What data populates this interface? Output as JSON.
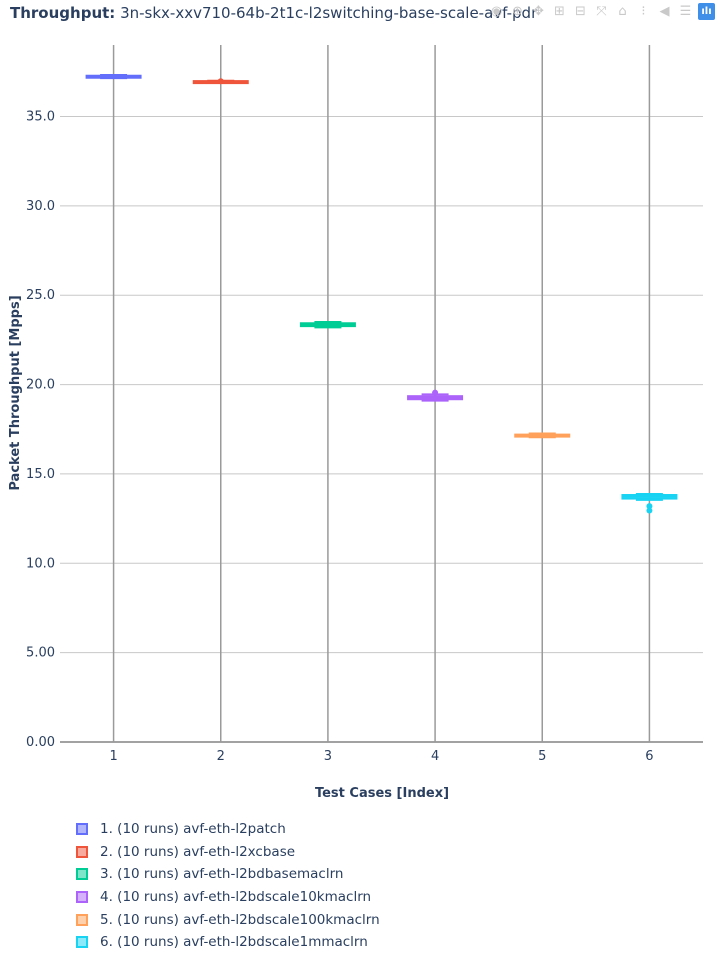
{
  "title": {
    "prefix": "Throughput:",
    "text": "3n-skx-xxv710-64b-2t1c-l2switching-base-scale-avf-pdr"
  },
  "modebar": [
    {
      "name": "camera-icon",
      "glyph": "◉"
    },
    {
      "name": "zoom-icon",
      "glyph": "⊕"
    },
    {
      "name": "pan-icon",
      "glyph": "✥"
    },
    {
      "name": "zoom-in-icon",
      "glyph": "⊞"
    },
    {
      "name": "zoom-out-icon",
      "glyph": "⊟"
    },
    {
      "name": "autoscale-icon",
      "glyph": "⤧"
    },
    {
      "name": "reset-axes-icon",
      "glyph": "⌂"
    },
    {
      "name": "spike-lines-icon",
      "glyph": "⁝"
    },
    {
      "name": "hover-closest-icon",
      "glyph": "◀"
    },
    {
      "name": "hover-compare-icon",
      "glyph": "☰"
    },
    {
      "name": "plotly-logo-icon",
      "glyph": "ılı"
    }
  ],
  "chart_data": {
    "type": "box",
    "xlabel": "Test Cases [Index]",
    "ylabel": "Packet Throughput [Mpps]",
    "ylim": [
      0,
      39
    ],
    "xlim": [
      0.5,
      6.5
    ],
    "yticks": [
      "0.00",
      "5.00",
      "10.0",
      "15.0",
      "20.0",
      "25.0",
      "30.0",
      "35.0"
    ],
    "yticks_values": [
      0,
      5,
      10,
      15,
      20,
      25,
      30,
      35
    ],
    "xticks": [
      "1",
      "2",
      "3",
      "4",
      "5",
      "6"
    ],
    "grid": true,
    "legend_position": "bottom-left",
    "series": [
      {
        "name": "1. (10 runs) avf-eth-l2patch",
        "x": 1,
        "color": "#636efa",
        "min": 37.15,
        "q1": 37.18,
        "median": 37.23,
        "q3": 37.28,
        "max": 37.32,
        "outliers": []
      },
      {
        "name": "2. (10 runs) avf-eth-l2xcbase",
        "x": 2,
        "color": "#ef553b",
        "min": 36.92,
        "q1": 36.94,
        "median": 36.96,
        "q3": 36.98,
        "max": 37.0,
        "outliers": [
          36.97
        ]
      },
      {
        "name": "3. (10 runs) avf-eth-l2bdbasemaclrn",
        "x": 3,
        "color": "#00cc96",
        "min": 23.2,
        "q1": 23.27,
        "median": 23.35,
        "q3": 23.43,
        "max": 23.5,
        "outliers": []
      },
      {
        "name": "4. (10 runs) avf-eth-l2bdscale10kmaclrn",
        "x": 4,
        "color": "#ab63fa",
        "min": 19.1,
        "q1": 19.18,
        "median": 19.27,
        "q3": 19.35,
        "max": 19.45,
        "outliers": [
          19.55
        ]
      },
      {
        "name": "5. (10 runs) avf-eth-l2bdscale100kmaclrn",
        "x": 5,
        "color": "#ffa15a",
        "min": 17.05,
        "q1": 17.1,
        "median": 17.15,
        "q3": 17.2,
        "max": 17.26,
        "outliers": []
      },
      {
        "name": "6. (10 runs) avf-eth-l2bdscale1mmaclrn",
        "x": 6,
        "color": "#19d3f3",
        "min": 13.55,
        "q1": 13.62,
        "median": 13.72,
        "q3": 13.82,
        "max": 13.88,
        "outliers": [
          13.2,
          12.95
        ]
      }
    ]
  }
}
